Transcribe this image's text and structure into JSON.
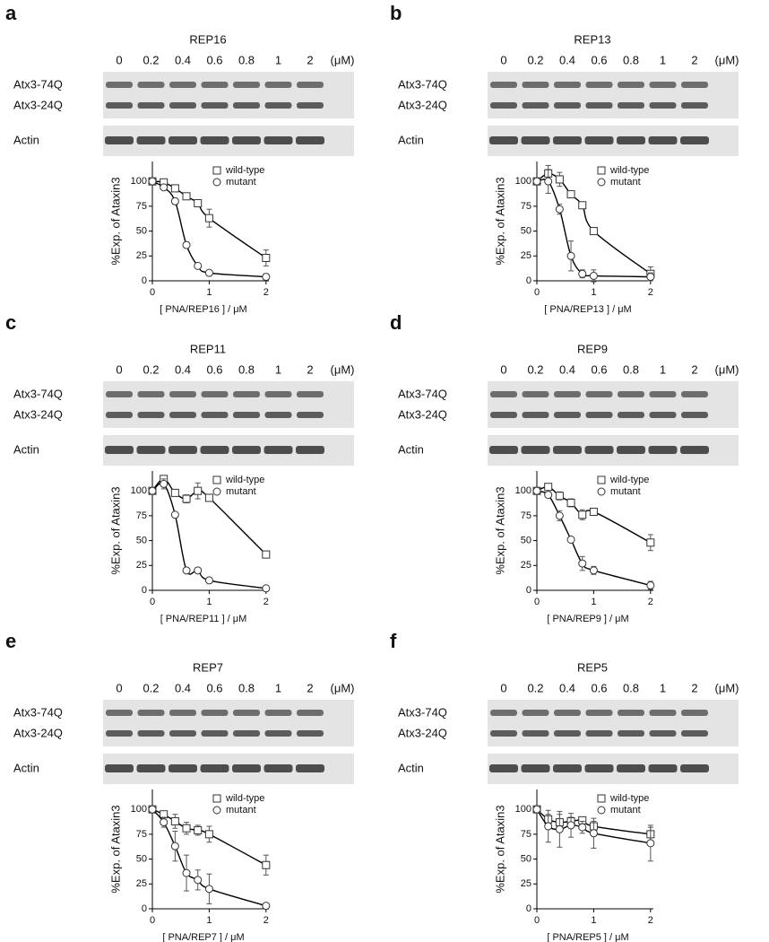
{
  "panels": [
    {
      "letter": "a",
      "blot": {
        "title": "REP16",
        "lanes": [
          "0",
          "0.2",
          "0.4",
          "0.6",
          "0.8",
          "1",
          "2"
        ],
        "unit": "(μM)",
        "rows": [
          "Atx3-74Q",
          "Atx3-24Q"
        ],
        "control": "Actin"
      }
    },
    {
      "letter": "b",
      "blot": {
        "title": "REP13",
        "lanes": [
          "0",
          "0.2",
          "0.4",
          "0.6",
          "0.8",
          "1",
          "2"
        ],
        "unit": "(μM)",
        "rows": [
          "Atx3-74Q",
          "Atx3-24Q"
        ],
        "control": "Actin"
      }
    },
    {
      "letter": "c",
      "blot": {
        "title": "REP11",
        "lanes": [
          "0",
          "0.2",
          "0.4",
          "0.6",
          "0.8",
          "1",
          "2"
        ],
        "unit": "(μM)",
        "rows": [
          "Atx3-74Q",
          "Atx3-24Q"
        ],
        "control": "Actin"
      }
    },
    {
      "letter": "d",
      "blot": {
        "title": "REP9",
        "lanes": [
          "0",
          "0.2",
          "0.4",
          "0.6",
          "0.8",
          "1",
          "2"
        ],
        "unit": "(μM)",
        "rows": [
          "Atx3-74Q",
          "Atx3-24Q"
        ],
        "control": "Actin"
      }
    },
    {
      "letter": "e",
      "blot": {
        "title": "REP7",
        "lanes": [
          "0",
          "0.2",
          "0.4",
          "0.6",
          "0.8",
          "1",
          "2"
        ],
        "unit": "(μM)",
        "rows": [
          "Atx3-74Q",
          "Atx3-24Q"
        ],
        "control": "Actin"
      }
    },
    {
      "letter": "f",
      "blot": {
        "title": "REP5",
        "lanes": [
          "0",
          "0.2",
          "0.4",
          "0.6",
          "0.8",
          "1",
          "2"
        ],
        "unit": "(μM)",
        "rows": [
          "Atx3-74Q",
          "Atx3-24Q"
        ],
        "control": "Actin"
      }
    }
  ],
  "chart_data": [
    {
      "type": "scatter",
      "ylabel": "%Exp. of Ataxin3",
      "xlabel": "[ PNA/REP16 ] / μM",
      "x": [
        0,
        0.2,
        0.4,
        0.6,
        0.8,
        1,
        2
      ],
      "xlim": [
        0,
        2.05
      ],
      "xticks": [
        0,
        1,
        2
      ],
      "ylim": [
        0,
        120
      ],
      "yticks": [
        0,
        25,
        50,
        75,
        100
      ],
      "legend": "top-right",
      "series": [
        {
          "name": "wild-type",
          "marker": "square",
          "color": "#333333",
          "values": [
            100,
            99,
            93,
            85,
            78,
            63,
            23
          ],
          "errors": [
            0,
            0,
            2,
            3,
            3,
            9,
            8
          ]
        },
        {
          "name": "mutant",
          "marker": "circle",
          "color": "#333333",
          "values": [
            100,
            94,
            80,
            36,
            15,
            8,
            4
          ],
          "errors": [
            0,
            2,
            3,
            3,
            2,
            2,
            3
          ]
        }
      ]
    },
    {
      "type": "scatter",
      "ylabel": "%Exp. of Ataxin3",
      "xlabel": "[ PNA/REP13 ] / μM",
      "x": [
        0,
        0.2,
        0.4,
        0.6,
        0.8,
        1,
        2
      ],
      "xlim": [
        0,
        2.05
      ],
      "xticks": [
        0,
        1,
        2
      ],
      "ylim": [
        0,
        120
      ],
      "yticks": [
        0,
        25,
        50,
        75,
        100
      ],
      "legend": "top-right",
      "series": [
        {
          "name": "wild-type",
          "marker": "square",
          "color": "#333333",
          "values": [
            100,
            108,
            102,
            87,
            76,
            50,
            7
          ],
          "errors": [
            0,
            8,
            7,
            3,
            2,
            3,
            7
          ]
        },
        {
          "name": "mutant",
          "marker": "circle",
          "color": "#333333",
          "values": [
            100,
            100,
            72,
            25,
            7,
            5,
            4
          ],
          "errors": [
            0,
            12,
            5,
            15,
            4,
            6,
            4
          ]
        }
      ]
    },
    {
      "type": "scatter",
      "ylabel": "%Exp. of Ataxin3",
      "xlabel": "[ PNA/REP11 ] / μM",
      "x": [
        0,
        0.2,
        0.4,
        0.6,
        0.8,
        1,
        2
      ],
      "xlim": [
        0,
        2.05
      ],
      "xticks": [
        0,
        1,
        2
      ],
      "ylim": [
        0,
        120
      ],
      "yticks": [
        0,
        25,
        50,
        75,
        100
      ],
      "legend": "top-right",
      "series": [
        {
          "name": "wild-type",
          "marker": "square",
          "color": "#333333",
          "values": [
            100,
            112,
            98,
            92,
            100,
            93,
            36
          ],
          "errors": [
            0,
            3,
            3,
            4,
            8,
            2,
            3
          ]
        },
        {
          "name": "mutant",
          "marker": "circle",
          "color": "#333333",
          "values": [
            100,
            107,
            76,
            20,
            20,
            10,
            2
          ],
          "errors": [
            0,
            5,
            2,
            2,
            2,
            1,
            1
          ]
        }
      ]
    },
    {
      "type": "scatter",
      "ylabel": "%Exp. of Ataxin3",
      "xlabel": "[ PNA/REP9 ] / μM",
      "x": [
        0,
        0.2,
        0.4,
        0.6,
        0.8,
        1,
        2
      ],
      "xlim": [
        0,
        2.05
      ],
      "xticks": [
        0,
        1,
        2
      ],
      "ylim": [
        0,
        120
      ],
      "yticks": [
        0,
        25,
        50,
        75,
        100
      ],
      "legend": "top-right",
      "series": [
        {
          "name": "wild-type",
          "marker": "square",
          "color": "#333333",
          "values": [
            100,
            104,
            95,
            88,
            76,
            79,
            48
          ],
          "errors": [
            0,
            2,
            4,
            4,
            5,
            2,
            8
          ]
        },
        {
          "name": "mutant",
          "marker": "circle",
          "color": "#333333",
          "values": [
            100,
            96,
            75,
            51,
            27,
            20,
            5
          ],
          "errors": [
            0,
            2,
            5,
            2,
            7,
            4,
            4
          ]
        }
      ]
    },
    {
      "type": "scatter",
      "ylabel": "%Exp. of Ataxin3",
      "xlabel": "[ PNA/REP7 ] / μM",
      "x": [
        0,
        0.2,
        0.4,
        0.6,
        0.8,
        1,
        2
      ],
      "xlim": [
        0,
        2.05
      ],
      "xticks": [
        0,
        1,
        2
      ],
      "ylim": [
        0,
        120
      ],
      "yticks": [
        0,
        25,
        50,
        75,
        100
      ],
      "legend": "top-right",
      "series": [
        {
          "name": "wild-type",
          "marker": "square",
          "color": "#333333",
          "values": [
            100,
            95,
            88,
            81,
            79,
            75,
            44
          ],
          "errors": [
            0,
            3,
            7,
            6,
            5,
            8,
            10
          ]
        },
        {
          "name": "mutant",
          "marker": "circle",
          "color": "#333333",
          "values": [
            100,
            87,
            63,
            36,
            29,
            20,
            3
          ],
          "errors": [
            0,
            5,
            15,
            18,
            10,
            15,
            2
          ]
        }
      ]
    },
    {
      "type": "scatter",
      "ylabel": "%Exp. of Ataxin3",
      "xlabel": "[ PNA/REP5 ] / μM",
      "x": [
        0,
        0.2,
        0.4,
        0.6,
        0.8,
        1,
        2
      ],
      "xlim": [
        0,
        2.05
      ],
      "xticks": [
        0,
        1,
        2
      ],
      "ylim": [
        0,
        120
      ],
      "yticks": [
        0,
        25,
        50,
        75,
        100
      ],
      "legend": "top-right",
      "series": [
        {
          "name": "wild-type",
          "marker": "square",
          "color": "#333333",
          "values": [
            100,
            90,
            87,
            88,
            89,
            83,
            75
          ],
          "errors": [
            0,
            5,
            8,
            4,
            3,
            5,
            7
          ]
        },
        {
          "name": "mutant",
          "marker": "circle",
          "color": "#333333",
          "values": [
            100,
            83,
            80,
            84,
            82,
            76,
            66
          ],
          "errors": [
            0,
            16,
            18,
            12,
            6,
            15,
            18
          ]
        }
      ]
    }
  ]
}
